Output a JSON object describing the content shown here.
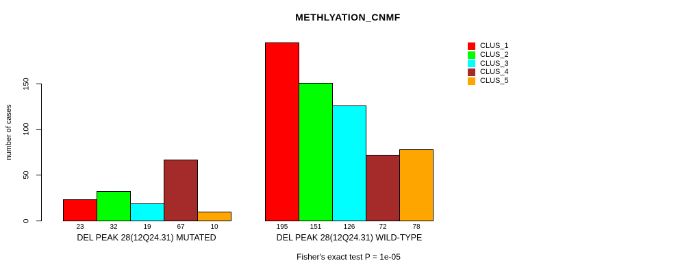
{
  "chart_data": {
    "type": "bar",
    "title": "METHLYATION_CNMF",
    "ylabel": "number of cases",
    "xlabel": "",
    "groups": [
      "DEL PEAK 28(12Q24.31) MUTATED",
      "DEL PEAK 28(12Q24.31) WILD-TYPE"
    ],
    "series": [
      {
        "name": "CLUS_1",
        "color": "#ff0000",
        "values": [
          23,
          195
        ]
      },
      {
        "name": "CLUS_2",
        "color": "#00ff00",
        "values": [
          32,
          151
        ]
      },
      {
        "name": "CLUS_3",
        "color": "#00ffff",
        "values": [
          19,
          126
        ]
      },
      {
        "name": "CLUS_4",
        "color": "#a52a2a",
        "values": [
          67,
          72
        ]
      },
      {
        "name": "CLUS_5",
        "color": "#ffa500",
        "values": [
          10,
          78
        ]
      }
    ],
    "yticks": [
      0,
      50,
      100,
      150
    ],
    "ylim": [
      0,
      205
    ],
    "grid": false,
    "bar_border_color": "#000000",
    "legend_position": "right",
    "legend_entries": [
      "CLUS_1",
      "CLUS_2",
      "CLUS_3",
      "CLUS_4",
      "CLUS_5"
    ],
    "annotation": "Fisher's exact test P = 1e-05"
  }
}
